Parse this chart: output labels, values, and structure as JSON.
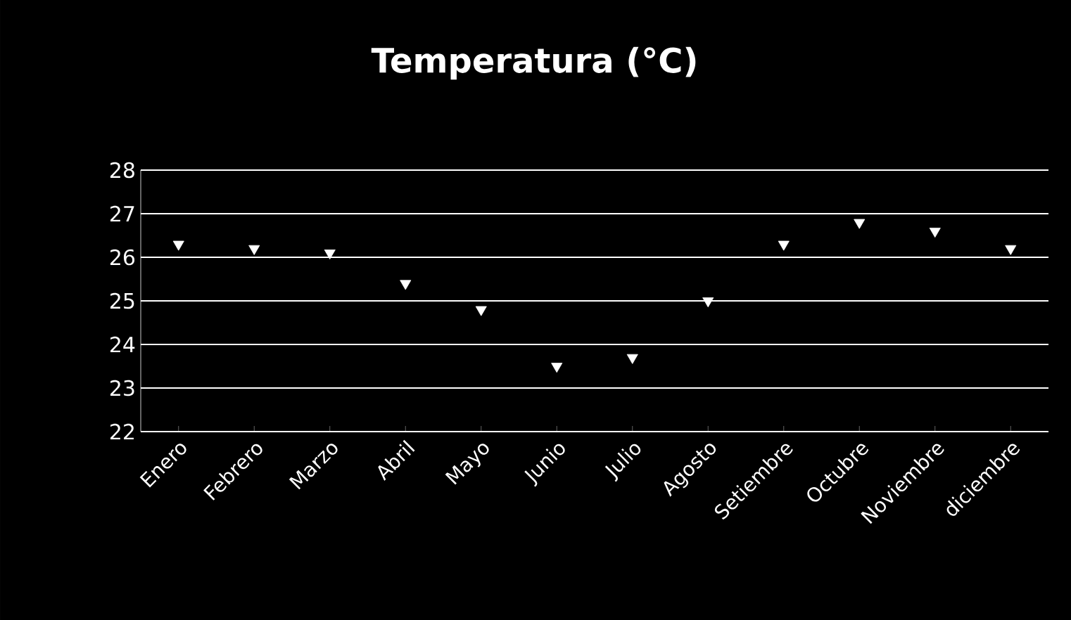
{
  "chart_data": {
    "type": "scatter",
    "title": "Temperatura (°C)",
    "categories": [
      "Enero",
      "Febrero",
      "Marzo",
      "Abril",
      "Mayo",
      "Junio",
      "Julio",
      "Agosto",
      "Setiembre",
      "Octubre",
      "Noviembre",
      "diciembre"
    ],
    "values": [
      26.3,
      26.2,
      26.1,
      25.4,
      24.8,
      23.5,
      23.7,
      25.0,
      26.3,
      26.8,
      26.6,
      26.2
    ],
    "color": "#ffffff",
    "marker": "triangle",
    "ylim": [
      22,
      28
    ],
    "yticks": [
      22,
      23,
      24,
      25,
      26,
      27,
      28
    ],
    "grid": "y"
  }
}
